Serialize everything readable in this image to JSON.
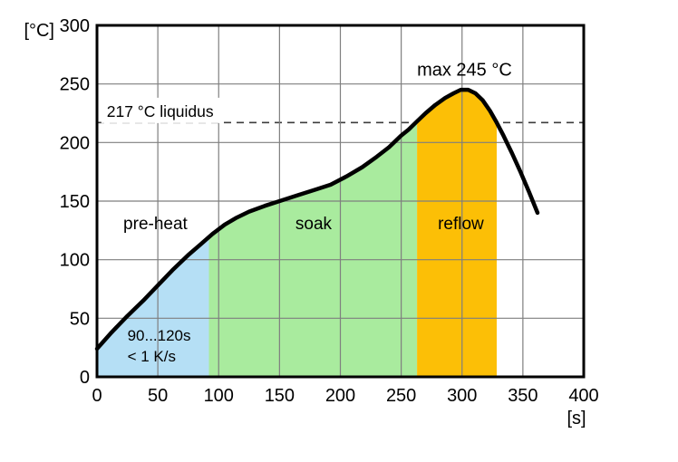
{
  "chart_data": {
    "type": "area",
    "x_axis": {
      "unit_label": "[s]",
      "min": 0,
      "max": 400,
      "ticks": [
        0,
        50,
        100,
        150,
        200,
        250,
        300,
        350,
        400
      ]
    },
    "y_axis": {
      "unit_label": "[°C]",
      "min": 0,
      "max": 300,
      "ticks": [
        300,
        250,
        200,
        150,
        100,
        50,
        0
      ]
    },
    "grid": {
      "show": true,
      "step_s": 50,
      "step_c": 50
    },
    "liquidus": {
      "temp_c": 217,
      "label": "217 °C liquidus",
      "style": "dashed",
      "label_anchor": {
        "s": 8,
        "temp_c": 222
      }
    },
    "peak": {
      "s": 300,
      "temp_c": 245,
      "label": "max 245 °C",
      "label_anchor": {
        "s": 302,
        "temp_c": 257
      }
    },
    "regions": [
      {
        "label": "pre-heat",
        "from_s": 0,
        "to_s": 92,
        "color": "#B5DFF5",
        "label_anchor": {
          "s": 48,
          "temp_c": 126
        }
      },
      {
        "label": "soak",
        "from_s": 92,
        "to_s": 263,
        "color": "#A9EB9E",
        "label_anchor": {
          "s": 178,
          "temp_c": 126
        }
      },
      {
        "label": "reflow",
        "from_s": 263,
        "to_s": 328.5,
        "color": "#FCBF06",
        "label_anchor": {
          "s": 299,
          "temp_c": 126
        }
      }
    ],
    "preheat_note": {
      "lines": [
        "90...120s",
        "< 1 K/s"
      ],
      "anchor": {
        "s": 25,
        "temp_c": 31
      },
      "line_spacing_c": 18
    },
    "profile_curve_s_degC": [
      [
        0,
        24
      ],
      [
        12,
        38
      ],
      [
        25,
        52
      ],
      [
        38,
        65
      ],
      [
        50,
        78
      ],
      [
        62,
        91
      ],
      [
        75,
        104
      ],
      [
        85,
        113
      ],
      [
        95,
        122
      ],
      [
        105,
        130
      ],
      [
        115,
        136
      ],
      [
        125,
        141
      ],
      [
        138,
        146
      ],
      [
        150,
        150
      ],
      [
        165,
        155
      ],
      [
        180,
        160
      ],
      [
        192,
        164
      ],
      [
        205,
        171
      ],
      [
        218,
        179
      ],
      [
        230,
        188
      ],
      [
        240,
        196
      ],
      [
        250,
        206
      ],
      [
        256,
        211
      ],
      [
        262,
        217
      ],
      [
        270,
        225
      ],
      [
        278,
        232
      ],
      [
        286,
        238
      ],
      [
        293,
        242
      ],
      [
        299,
        245
      ],
      [
        305,
        245
      ],
      [
        311,
        242
      ],
      [
        317,
        236
      ],
      [
        323,
        227
      ],
      [
        328,
        218
      ],
      [
        334,
        206
      ],
      [
        341,
        191
      ],
      [
        348,
        175
      ],
      [
        355,
        158
      ],
      [
        362,
        140
      ]
    ],
    "colors": {
      "curve": "#000000",
      "grid": "#7F7F7F",
      "dashed_line": "#3C3C3C",
      "border": "#000000",
      "text": "#000000",
      "plot_background": "#FFFFFF",
      "page_background": "#FFFFFF",
      "label_box_background": "#FFFFFF"
    }
  }
}
